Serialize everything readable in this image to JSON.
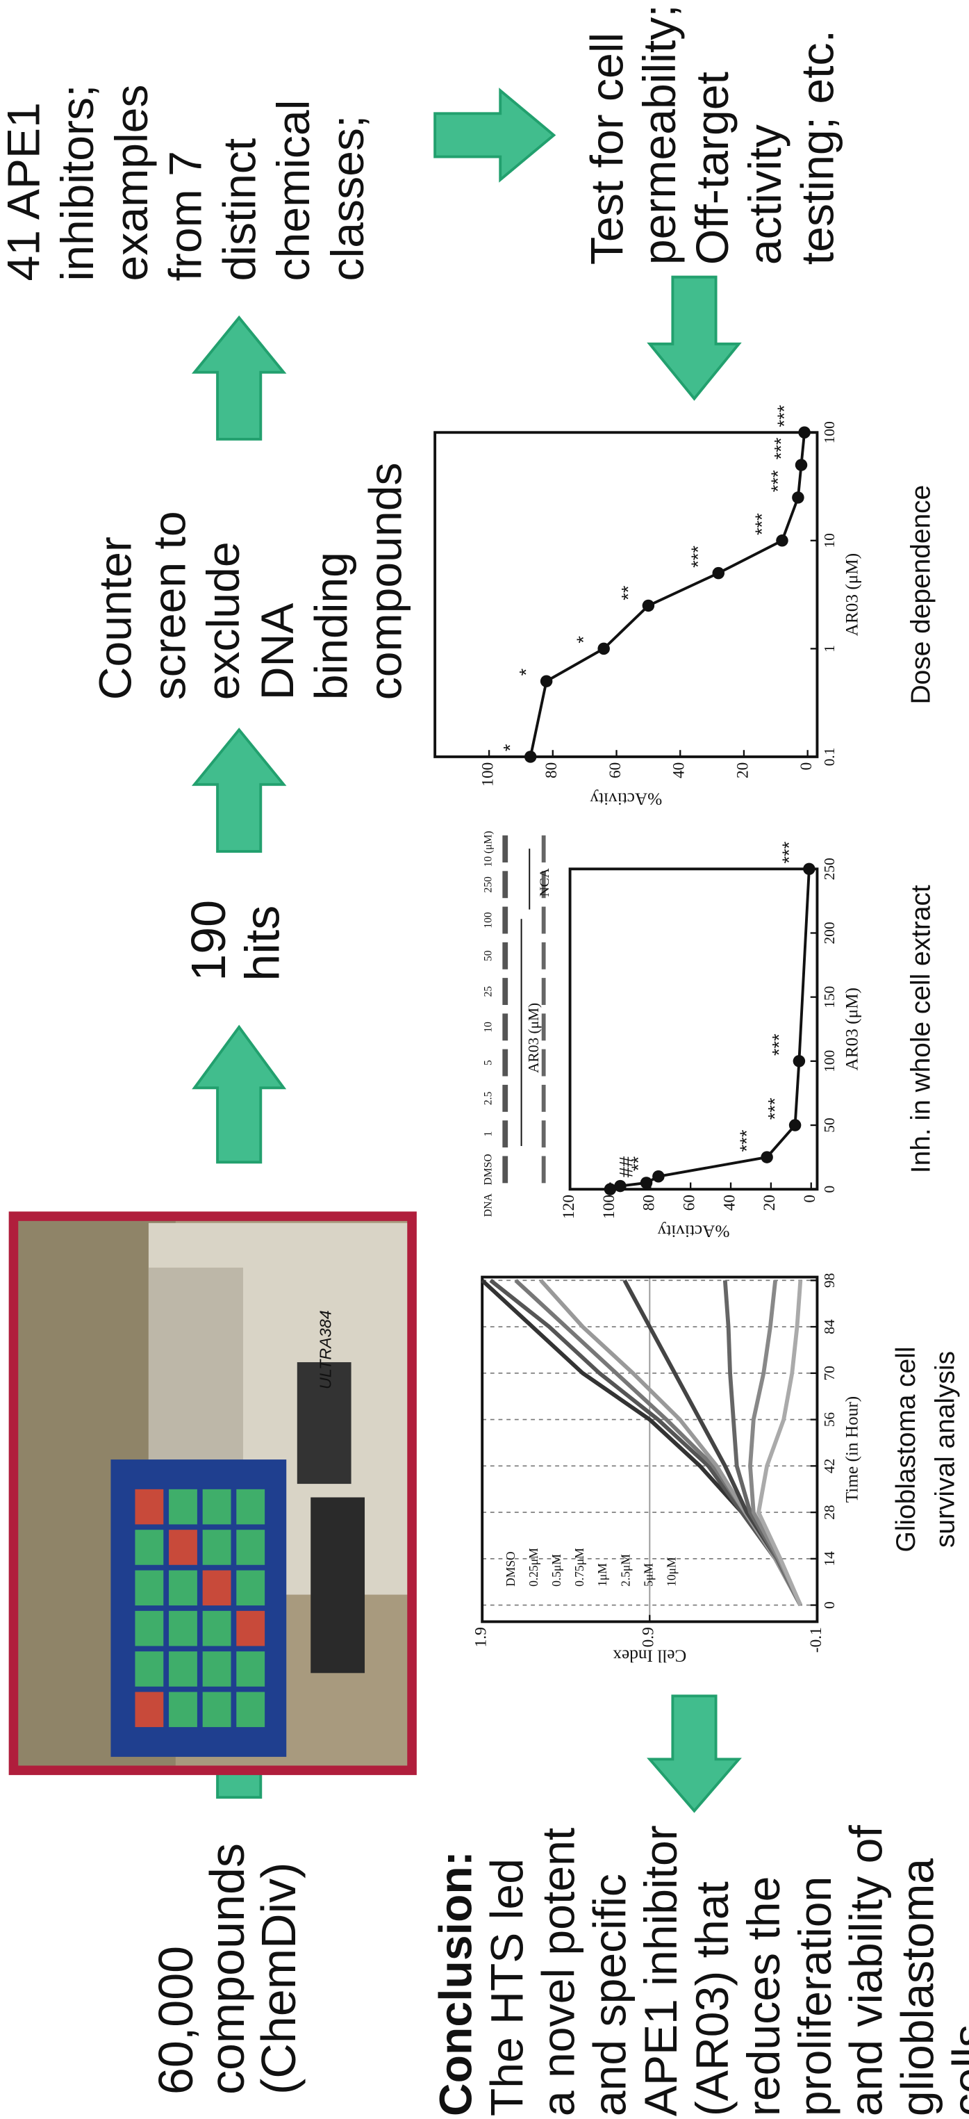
{
  "steps": {
    "library": [
      "60,000",
      "compounds",
      "(ChemDiv)"
    ],
    "hits": [
      "190",
      "hits"
    ],
    "counter_screen": [
      "Counter",
      "screen to",
      "exclude",
      "DNA",
      "binding",
      "compounds"
    ],
    "inhibitors": [
      "41 APE1",
      "inhibitors;",
      "examples",
      "from 7",
      "distinct",
      "chemical",
      "classes;"
    ],
    "followup": [
      "Test for cell",
      "permeability;",
      "Off-target",
      "activity",
      "testing; etc."
    ]
  },
  "conclusion": {
    "heading": "Conclusion:",
    "lines": [
      "The HTS led",
      "a novel potent",
      "and specific",
      "APE1 inhibitor",
      "(AR03) that",
      "reduces the",
      "proliferation",
      "and viability of",
      "glioblastoma",
      "cells"
    ]
  },
  "photo": {
    "label": "ULTRA384"
  },
  "chart_data": [
    {
      "type": "line",
      "caption": [
        "Glioblastoma cell",
        "survival analysis"
      ],
      "x_label": "Time (in Hour)",
      "y_label": "Cell Index",
      "x": [
        0,
        14,
        28,
        42,
        56,
        70,
        84,
        98
      ],
      "xlim": [
        -5,
        99
      ],
      "xticks": [
        0,
        14,
        28,
        42,
        56,
        70,
        84,
        98
      ],
      "ylim": [
        -0.1,
        1.9
      ],
      "yticks": [
        -0.1,
        0.9,
        1.9
      ],
      "grid": true,
      "series": [
        {
          "name": "DMSO",
          "color": "#333333",
          "values": [
            0,
            0.15,
            0.35,
            0.6,
            0.9,
            1.3,
            1.6,
            1.9
          ]
        },
        {
          "name": "0.25μM",
          "color": "#555555",
          "values": [
            0,
            0.15,
            0.35,
            0.55,
            0.85,
            1.2,
            1.5,
            1.85
          ]
        },
        {
          "name": "0.5μM",
          "color": "#777777",
          "values": [
            0,
            0.15,
            0.33,
            0.52,
            0.8,
            1.1,
            1.4,
            1.7
          ]
        },
        {
          "name": "0.75μM",
          "color": "#999999",
          "values": [
            0,
            0.15,
            0.33,
            0.5,
            0.72,
            1.0,
            1.3,
            1.55
          ]
        },
        {
          "name": "1μM",
          "color": "#444444",
          "values": [
            0,
            0.14,
            0.32,
            0.45,
            0.6,
            0.75,
            0.9,
            1.05
          ]
        },
        {
          "name": "2.5μM",
          "color": "#666666",
          "values": [
            0,
            0.14,
            0.3,
            0.38,
            0.4,
            0.42,
            0.43,
            0.45
          ]
        },
        {
          "name": "5μM",
          "color": "#888888",
          "values": [
            0,
            0.13,
            0.28,
            0.3,
            0.28,
            0.22,
            0.18,
            0.15
          ]
        },
        {
          "name": "10μM",
          "color": "#aaaaaa",
          "values": [
            0,
            0.12,
            0.25,
            0.2,
            0.1,
            0.05,
            0.02,
            0.0
          ]
        }
      ]
    },
    {
      "type": "scatter",
      "caption": "Inh. in whole cell extract",
      "x_label": "AR03 (μM)",
      "y_label": "%Activity",
      "x": [
        0,
        2.5,
        5,
        10,
        25,
        50,
        100,
        250
      ],
      "values": [
        100,
        95,
        82,
        76,
        22,
        8,
        6,
        1
      ],
      "significance": [
        null,
        null,
        "##",
        "**",
        "***",
        "***",
        "***",
        "***"
      ],
      "xlim": [
        0,
        250
      ],
      "xticks": [
        0,
        50,
        100,
        150,
        200,
        250
      ],
      "ylim": [
        -3,
        120
      ],
      "yticks": [
        0,
        20,
        40,
        60,
        80,
        100,
        120
      ],
      "color": "#111111",
      "fit_line": true,
      "gel": {
        "lanes": [
          "DNA",
          "DMSO",
          "1",
          "2.5",
          "5",
          "10",
          "25",
          "50",
          "100",
          "250",
          "10 (μM)"
        ],
        "group_labels": [
          "AR03 (μM)",
          "NCA"
        ]
      }
    },
    {
      "type": "scatter",
      "caption": "Dose dependence",
      "x_label": "AR03 (μM)",
      "y_label": "%Activity",
      "xscale": "log",
      "x": [
        0.1,
        0.5,
        1,
        2.5,
        5,
        10,
        25,
        50,
        100
      ],
      "values": [
        87,
        82,
        64,
        50,
        28,
        8,
        3,
        2,
        1
      ],
      "significance": [
        "*",
        "*",
        "*",
        "**",
        "***",
        "***",
        "***",
        "***",
        "***"
      ],
      "xlim": [
        0.1,
        100
      ],
      "xticks": [
        0.1,
        1,
        10,
        100
      ],
      "ylim": [
        -3,
        117
      ],
      "yticks": [
        0,
        20,
        40,
        60,
        80,
        100
      ],
      "color": "#111111",
      "fit_line": true
    }
  ]
}
